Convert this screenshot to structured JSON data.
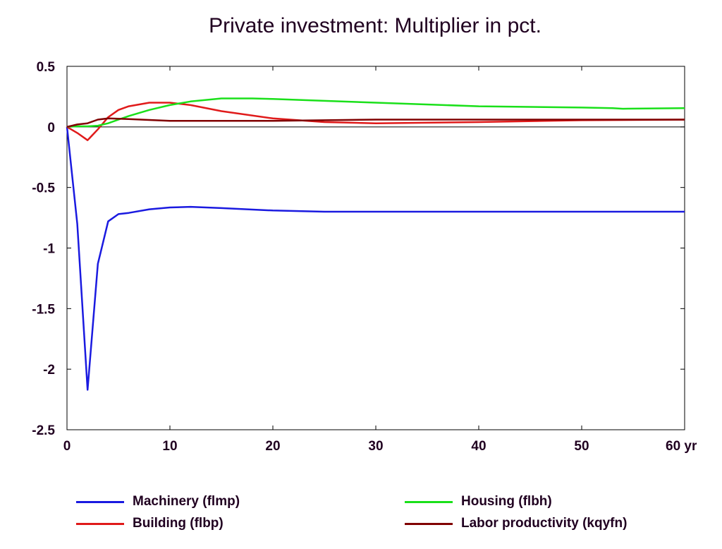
{
  "chart_data": {
    "type": "line",
    "title": "Private investment: Multiplier in pct.",
    "xlabel": "",
    "ylabel": "",
    "x_unit_label": "yr",
    "xlim": [
      0,
      60
    ],
    "ylim": [
      -2.5,
      0.5
    ],
    "x_ticks": [
      0,
      10,
      20,
      30,
      40,
      50,
      60
    ],
    "x_tick_labels": [
      "0",
      "10",
      "20",
      "30",
      "40",
      "50",
      "60 yr"
    ],
    "y_ticks": [
      0.5,
      0,
      -0.5,
      -1,
      -1.5,
      -2,
      -2.5
    ],
    "y_tick_labels": [
      "0.5",
      "0",
      "-0.5",
      "-1",
      "-1.5",
      "-2",
      "-2.5"
    ],
    "grid": false,
    "zero_line": true,
    "series": [
      {
        "name": "Machinery (flmp)",
        "color": "#1a1ae0",
        "x": [
          0,
          1,
          2,
          3,
          4,
          5,
          6,
          8,
          10,
          12,
          15,
          20,
          25,
          30,
          40,
          50,
          60
        ],
        "y": [
          0,
          -0.8,
          -2.17,
          -1.13,
          -0.78,
          -0.72,
          -0.71,
          -0.68,
          -0.665,
          -0.66,
          -0.67,
          -0.69,
          -0.7,
          -0.7,
          -0.7,
          -0.7,
          -0.7
        ]
      },
      {
        "name": "Building (flbp)",
        "color": "#e01a1a",
        "x": [
          0,
          1,
          2,
          3,
          4,
          5,
          6,
          8,
          10,
          12,
          15,
          20,
          25,
          30,
          40,
          50,
          60
        ],
        "y": [
          0,
          -0.05,
          -0.11,
          -0.02,
          0.08,
          0.14,
          0.17,
          0.2,
          0.2,
          0.18,
          0.13,
          0.07,
          0.04,
          0.03,
          0.04,
          0.055,
          0.06
        ]
      },
      {
        "name": "Housing (flbh)",
        "color": "#1ae01a",
        "x": [
          0,
          1,
          2,
          3,
          4,
          5,
          6,
          8,
          10,
          12,
          15,
          18,
          20,
          25,
          30,
          40,
          50,
          53,
          54,
          60
        ],
        "y": [
          0,
          0.005,
          0.005,
          0.01,
          0.03,
          0.06,
          0.09,
          0.14,
          0.18,
          0.21,
          0.235,
          0.235,
          0.23,
          0.215,
          0.2,
          0.17,
          0.16,
          0.155,
          0.15,
          0.155
        ]
      },
      {
        "name": "Labor productivity (kqyfn)",
        "color": "#800000",
        "x": [
          0,
          1,
          2,
          3,
          4,
          6,
          10,
          15,
          20,
          25,
          30,
          40,
          50,
          60
        ],
        "y": [
          0,
          0.02,
          0.03,
          0.06,
          0.07,
          0.065,
          0.05,
          0.05,
          0.05,
          0.055,
          0.06,
          0.06,
          0.06,
          0.06
        ]
      }
    ],
    "legend": {
      "position": "bottom",
      "columns": 2,
      "order": [
        "Machinery (flmp)",
        "Housing (flbh)",
        "Building (flbp)",
        "Labor productivity (kqyfn)"
      ]
    }
  }
}
